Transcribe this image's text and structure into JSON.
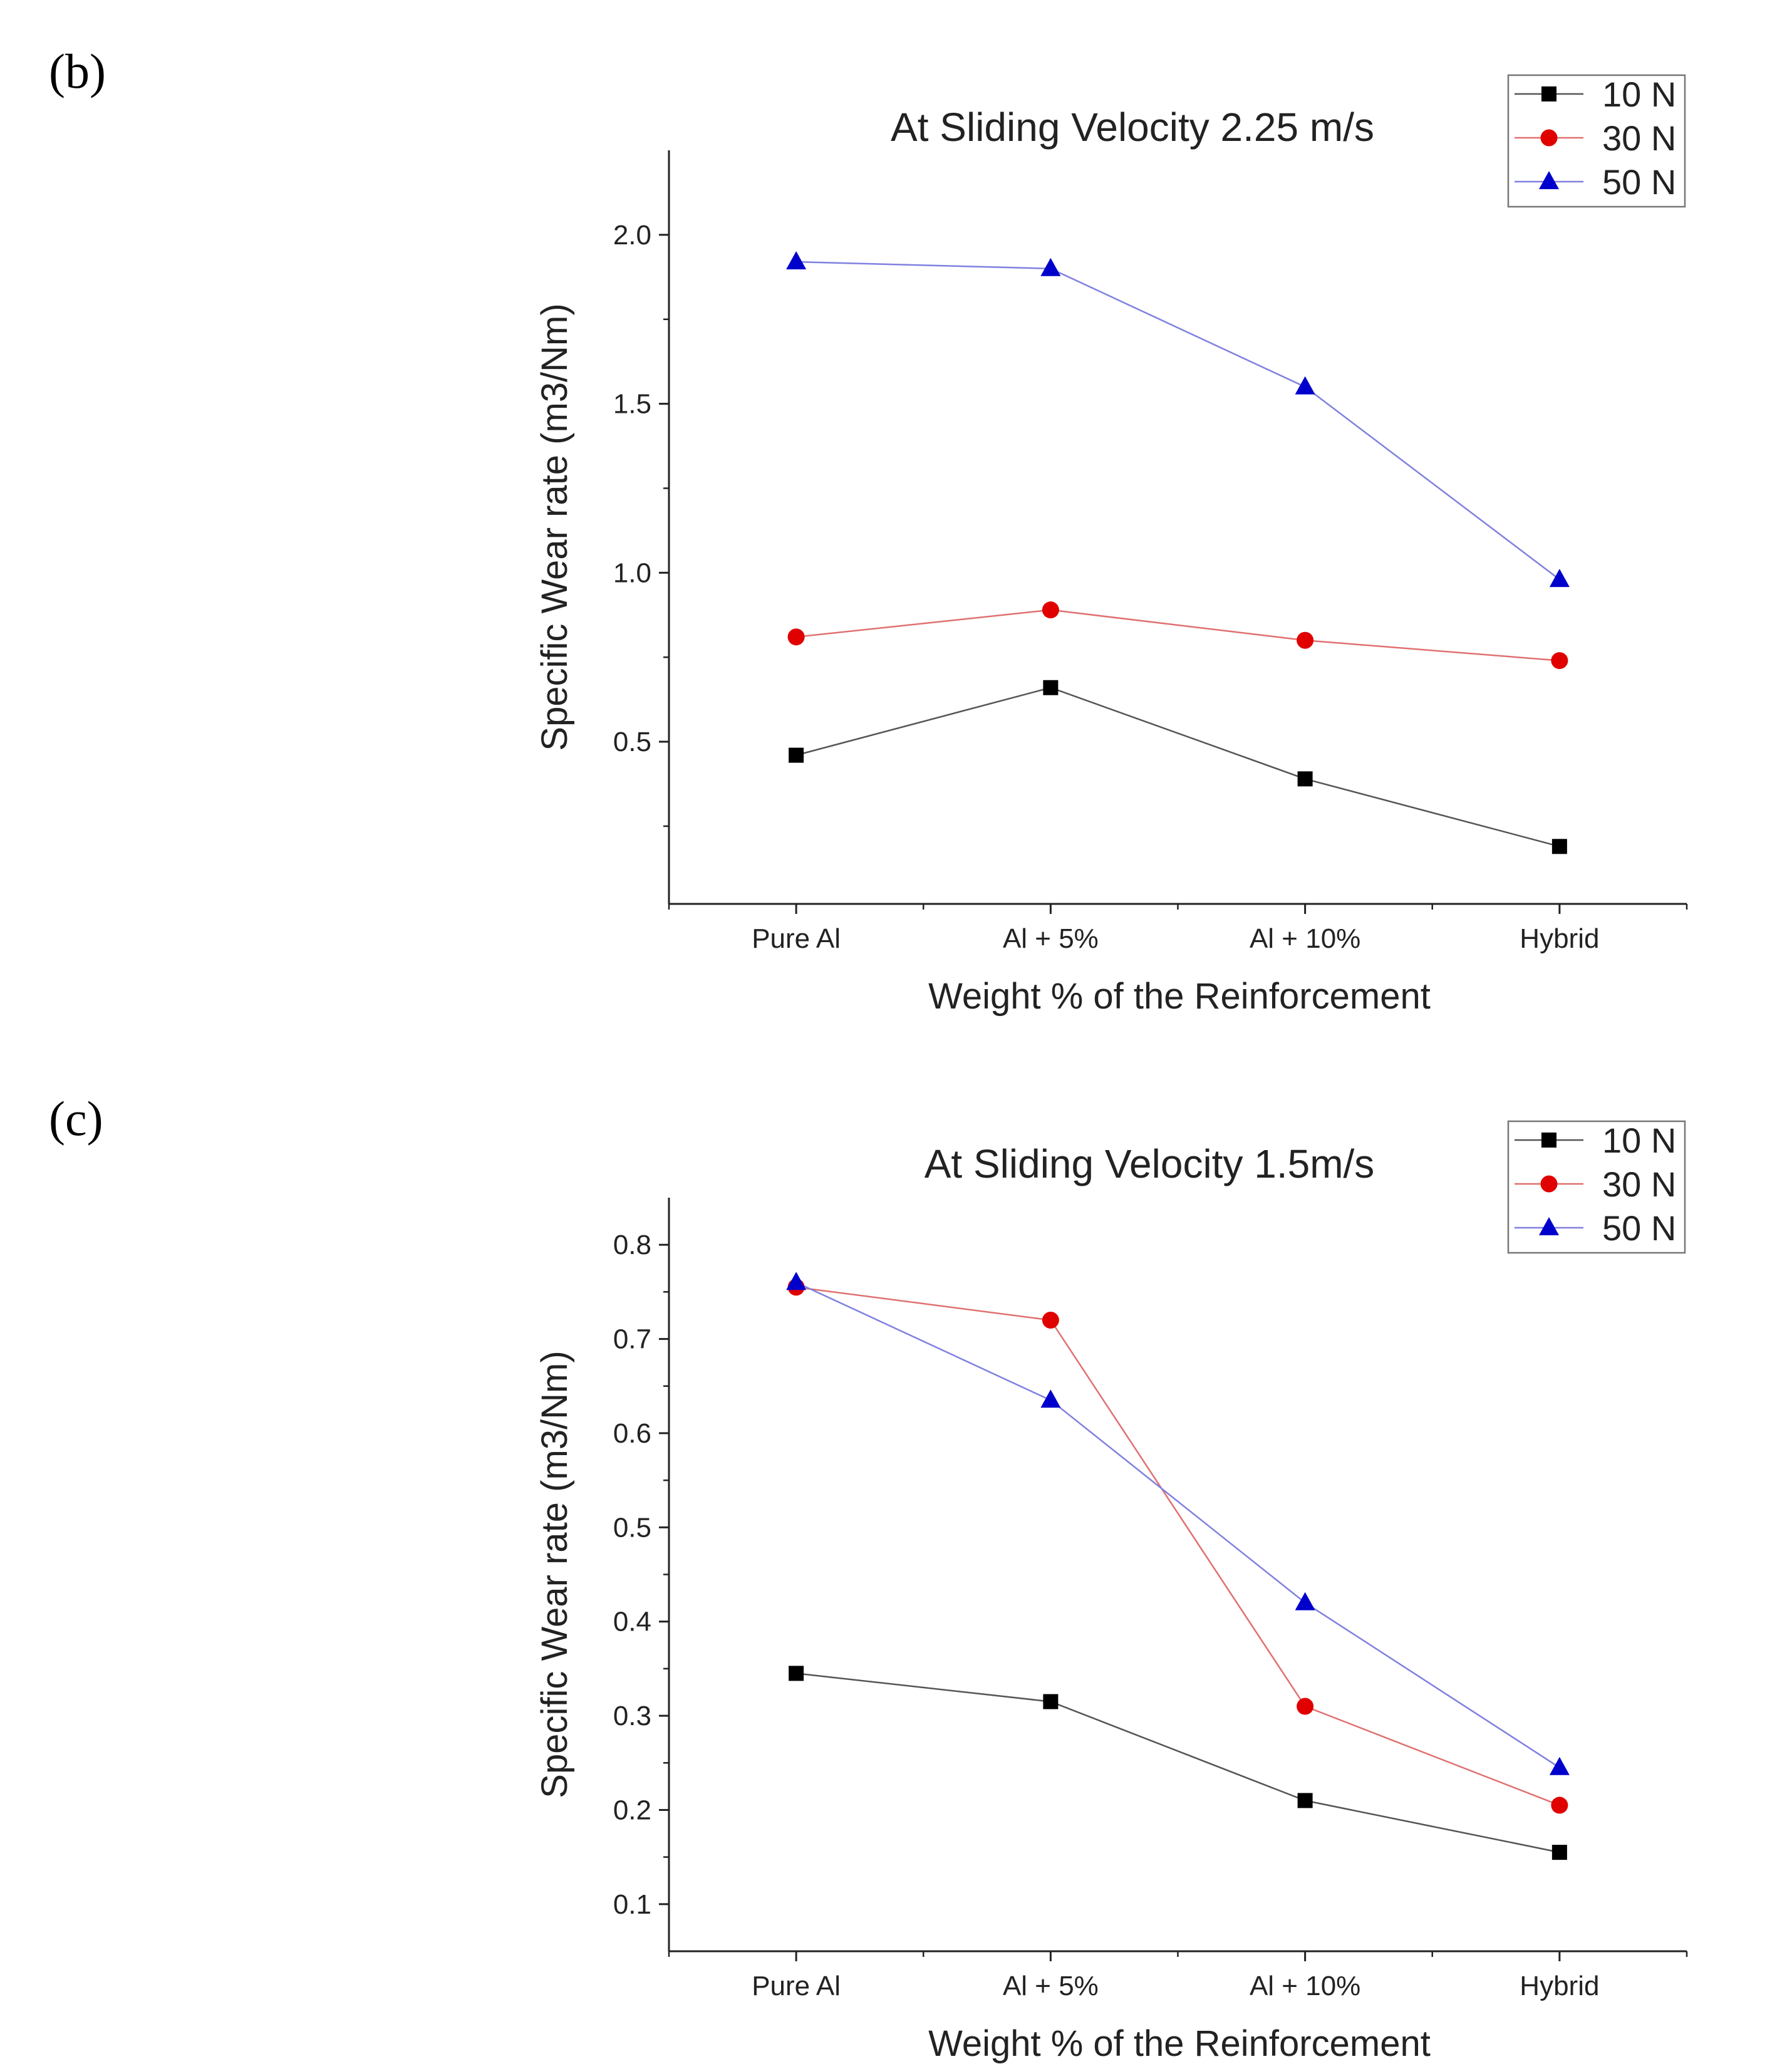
{
  "panels": [
    {
      "label": "(b)",
      "chart_data": {
        "type": "line",
        "title": "At Sliding Velocity 2.25 m/s",
        "xlabel": "Weight % of the Reinforcement",
        "ylabel": "Specific Wear rate (m3/Nm)",
        "categories": [
          "Pure Al",
          "Al + 5%",
          "Al + 10%",
          "Hybrid"
        ],
        "ylim": [
          0.02,
          2.25
        ],
        "yticks": [
          0.5,
          1.0,
          1.5,
          2.0
        ],
        "ytick_labels": [
          "0.5",
          "1.0",
          "1.5",
          "2.0"
        ],
        "legend_position": "top-right",
        "series": [
          {
            "name": "10 N",
            "marker": "square",
            "color": "#000000",
            "line_color": "#555555",
            "values": [
              0.46,
              0.66,
              0.39,
              0.19
            ]
          },
          {
            "name": "30 N",
            "marker": "circle",
            "color": "#e00000",
            "line_color": "#e07070",
            "values": [
              0.81,
              0.89,
              0.8,
              0.74
            ]
          },
          {
            "name": "50 N",
            "marker": "triangle",
            "color": "#0000cc",
            "line_color": "#8080e0",
            "values": [
              1.92,
              1.9,
              1.55,
              0.98
            ]
          }
        ]
      }
    },
    {
      "label": "(c)",
      "chart_data": {
        "type": "line",
        "title": "At Sliding Velocity 1.5m/s",
        "xlabel": "Weight % of the Reinforcement",
        "ylabel": "Specific Wear rate (m3/Nm)",
        "categories": [
          "Pure Al",
          "Al + 5%",
          "Al + 10%",
          "Hybrid"
        ],
        "ylim": [
          0.05,
          0.85
        ],
        "yticks": [
          0.1,
          0.2,
          0.3,
          0.4,
          0.5,
          0.6,
          0.7,
          0.8
        ],
        "ytick_labels": [
          "0.1",
          "0.2",
          "0.3",
          "0.4",
          "0.5",
          "0.6",
          "0.7",
          "0.8"
        ],
        "legend_position": "top-right",
        "series": [
          {
            "name": "10 N",
            "marker": "square",
            "color": "#000000",
            "line_color": "#555555",
            "values": [
              0.345,
              0.315,
              0.21,
              0.155
            ]
          },
          {
            "name": "30 N",
            "marker": "circle",
            "color": "#e00000",
            "line_color": "#e07070",
            "values": [
              0.755,
              0.72,
              0.31,
              0.205
            ]
          },
          {
            "name": "50 N",
            "marker": "triangle",
            "color": "#0000cc",
            "line_color": "#8080e0",
            "values": [
              0.76,
              0.635,
              0.42,
              0.245
            ]
          }
        ]
      }
    }
  ]
}
